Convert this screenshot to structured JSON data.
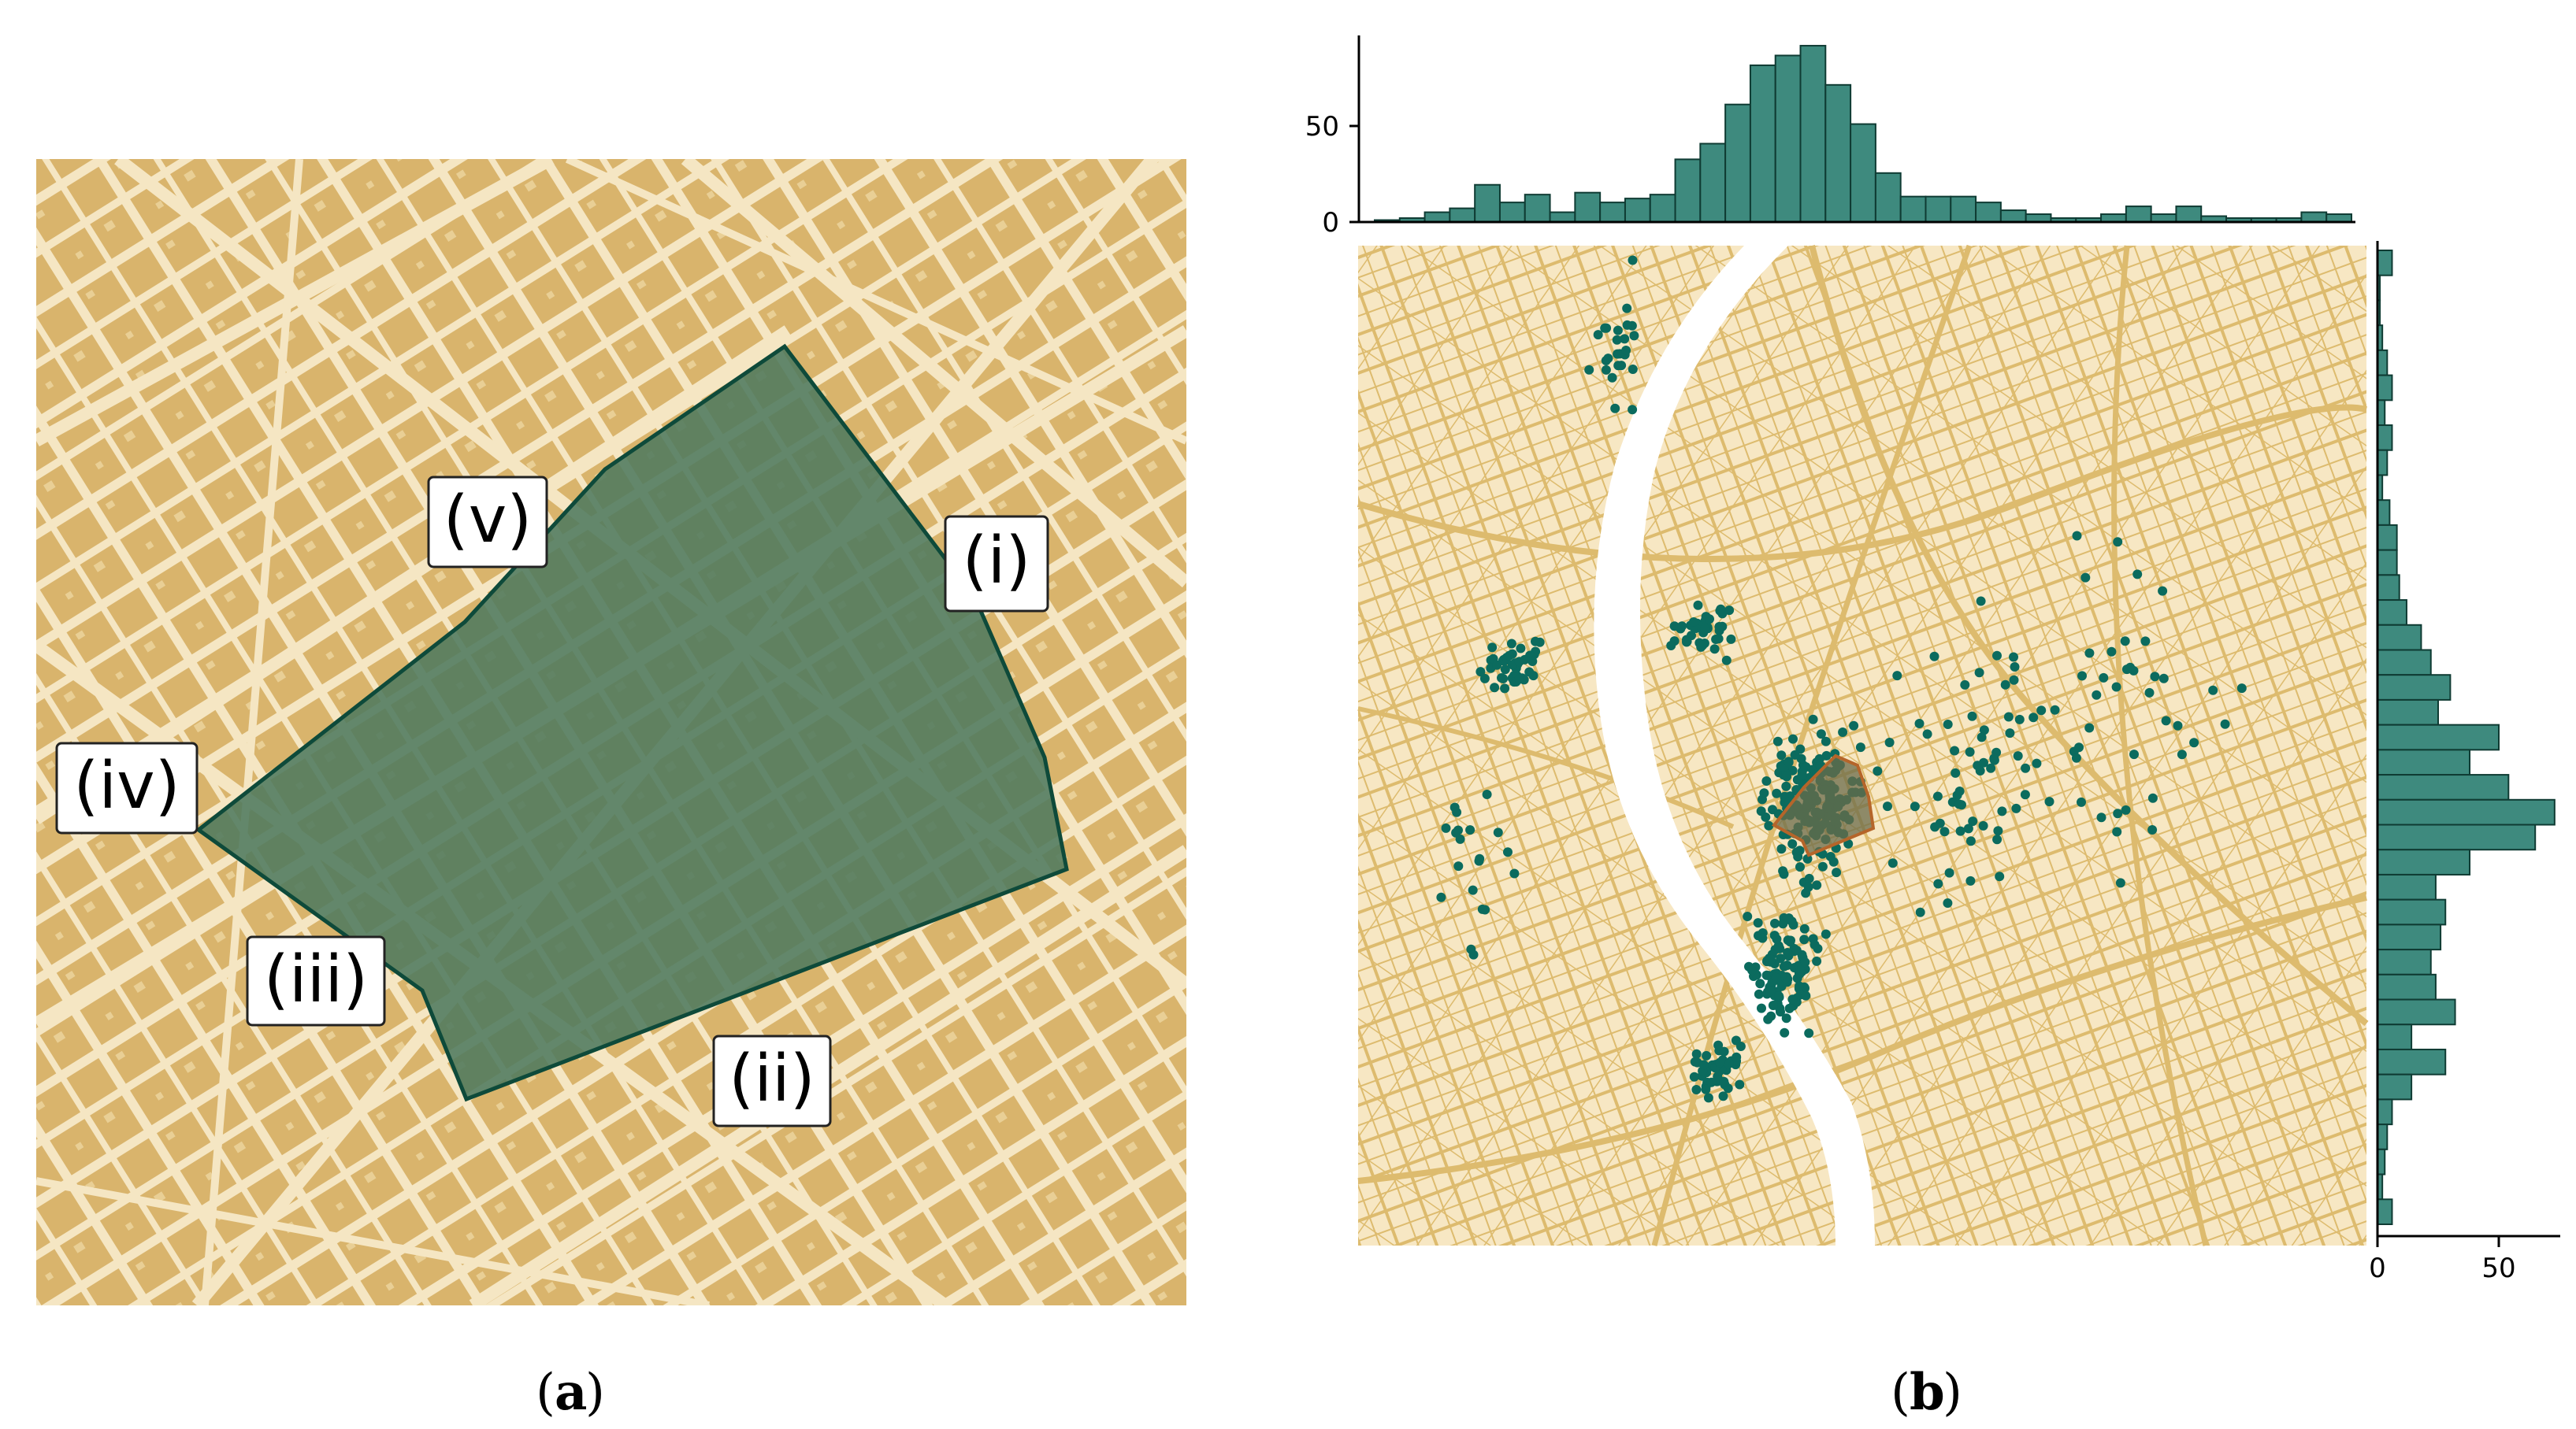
{
  "panel_a": {
    "caption_letter": "a",
    "labels": [
      "(i)",
      "(ii)",
      "(iii)",
      "(iv)",
      "(v)"
    ],
    "colors": {
      "background": "#F5E6C3",
      "blocks": "#D9B46C",
      "polygon_fill": "#4F7A5E",
      "polygon_stroke": "#0E4A3A"
    }
  },
  "panel_b": {
    "caption_letter": "b",
    "colors": {
      "map": "#F7E7C3",
      "streets": "#DDBB6E",
      "river": "#FFFFFF",
      "points": "#0B6B5E",
      "bars": "#3E8A7E",
      "bar_edge": "#0F3B33",
      "highlight": "#B5652A"
    }
  },
  "chart_data": [
    {
      "type": "bar",
      "name": "top-marginal-histogram",
      "yticks": [
        "0",
        "50"
      ],
      "ylim": [
        0,
        95
      ],
      "values": [
        1,
        2,
        5,
        7,
        19,
        10,
        14,
        5,
        15,
        10,
        12,
        14,
        32,
        40,
        60,
        80,
        85,
        90,
        70,
        50,
        25,
        13,
        13,
        13,
        10,
        6,
        4,
        2,
        2,
        4,
        8,
        4,
        8,
        3,
        2,
        2,
        2,
        5,
        4
      ]
    },
    {
      "type": "bar",
      "name": "right-marginal-histogram",
      "orientation": "horizontal",
      "xticks": [
        "0",
        "50"
      ],
      "xlim": [
        0,
        75
      ],
      "values": [
        6,
        1,
        1,
        2,
        4,
        6,
        3,
        6,
        4,
        2,
        5,
        8,
        8,
        9,
        12,
        18,
        22,
        30,
        25,
        50,
        38,
        54,
        73,
        65,
        38,
        24,
        28,
        26,
        22,
        24,
        32,
        14,
        28,
        14,
        6,
        4,
        3,
        2,
        6
      ]
    }
  ]
}
